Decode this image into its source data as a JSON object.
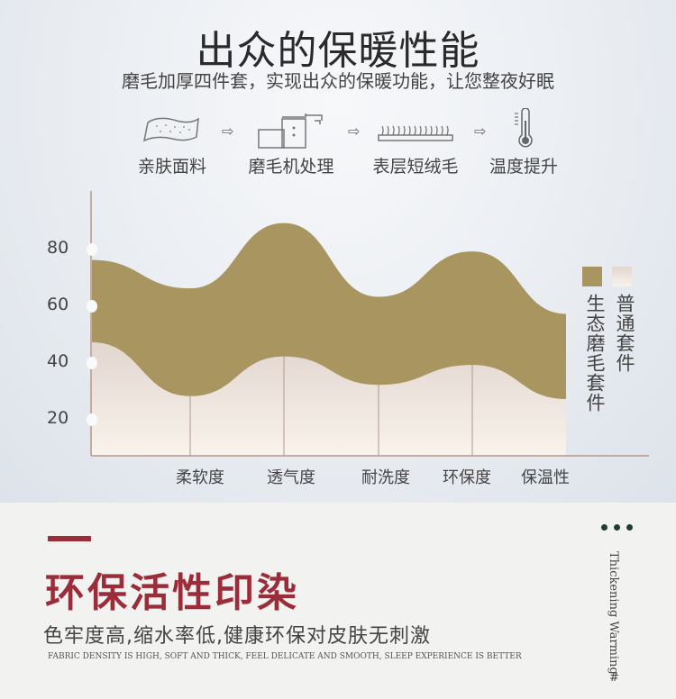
{
  "header": {
    "title": "出众的保暖性能",
    "subtitle": "磨毛加厚四件套，实现出众的保暖功能，让您整夜好眠"
  },
  "process": [
    {
      "label": "亲肤面料",
      "icon": "fabric-icon"
    },
    {
      "label": "磨毛机处理",
      "icon": "machine-icon"
    },
    {
      "label": "表层短绒毛",
      "icon": "fleece-icon"
    },
    {
      "label": "温度提升",
      "icon": "thermometer-icon"
    }
  ],
  "chart_data": {
    "type": "area",
    "categories": [
      "",
      "柔软度",
      "透气度",
      "耐洗度",
      "环保度",
      "保温性"
    ],
    "yticks": [
      20,
      40,
      60,
      80
    ],
    "ylim": [
      0,
      100
    ],
    "grid": false,
    "legend_placement": "right",
    "series": [
      {
        "name": "生态磨毛套件",
        "values": [
          76,
          66,
          89,
          63,
          79,
          57
        ],
        "color": "#a89560"
      },
      {
        "name": "普通套件",
        "values": [
          47,
          28,
          42,
          32,
          39,
          27
        ],
        "color": "#efe6de"
      }
    ]
  },
  "feature": {
    "title": "环保活性印染",
    "description": "色牢度高,缩水率低,健康环保对皮肤无刺激",
    "english": "FABRIC DENSITY IS HIGH, SOFT AND THICK, FEEL DELICATE AND SMOOTH, SLEEP EXPERIENCE IS BETTER"
  },
  "side": {
    "text": "Thickening  Warming",
    "mark": "#"
  },
  "colors": {
    "accent": "#9b2d3a",
    "olive": "#a89560",
    "dots": "#1f3d35"
  }
}
